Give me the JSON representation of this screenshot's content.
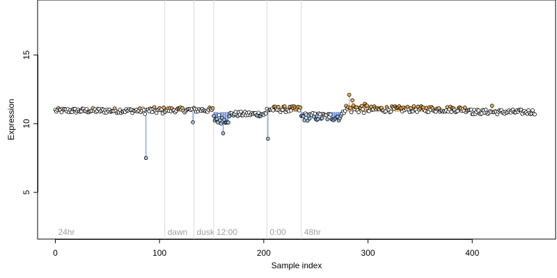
{
  "chart_data": {
    "type": "scatter",
    "title": "",
    "xlabel": "Sample index",
    "ylabel": "Expression",
    "xlim": [
      -17,
      480
    ],
    "ylim": [
      1.6,
      19.0
    ],
    "x_ticks": [
      0,
      100,
      200,
      300,
      400
    ],
    "y_ticks": [
      5,
      10,
      15
    ],
    "baseline": 10.85,
    "grid": false,
    "legend": "none",
    "colors": {
      "marker_default": "#000000",
      "marker_low": "#9ec3e6",
      "marker_high": "#f2b35a",
      "stem_low": "#5b7fd6",
      "stem_high": "#e8a040",
      "region_line": "#d9d9d9",
      "region_label": "#a0a0a0"
    },
    "regions": [
      {
        "label": "24hr",
        "x": 0
      },
      {
        "label": "dawn",
        "x": 105
      },
      {
        "label": "dusk",
        "x": 133
      },
      {
        "label": "12:00",
        "x": 152
      },
      {
        "label": "0:00",
        "x": 203
      },
      {
        "label": "48hr",
        "x": 236
      }
    ],
    "outliers": [
      {
        "x": 87,
        "y": 7.5
      },
      {
        "x": 132,
        "y": 10.1
      },
      {
        "x": 161,
        "y": 9.3
      },
      {
        "x": 204,
        "y": 8.9
      },
      {
        "x": 282,
        "y": 12.1
      },
      {
        "x": 285,
        "y": 11.7
      },
      {
        "x": 419,
        "y": 11.3
      }
    ],
    "series_profile": [
      {
        "x_start": 0,
        "x_end": 86,
        "mean": 10.95,
        "spread": 0.18
      },
      {
        "x_start": 86,
        "x_end": 105,
        "mean": 10.95,
        "spread": 0.25
      },
      {
        "x_start": 105,
        "x_end": 152,
        "mean": 11.0,
        "spread": 0.18
      },
      {
        "x_start": 152,
        "x_end": 168,
        "mean": 10.35,
        "spread": 0.35
      },
      {
        "x_start": 168,
        "x_end": 203,
        "mean": 10.7,
        "spread": 0.18
      },
      {
        "x_start": 203,
        "x_end": 236,
        "mean": 11.05,
        "spread": 0.22
      },
      {
        "x_start": 236,
        "x_end": 276,
        "mean": 10.5,
        "spread": 0.3
      },
      {
        "x_start": 276,
        "x_end": 300,
        "mean": 11.1,
        "spread": 0.35
      },
      {
        "x_start": 300,
        "x_end": 400,
        "mean": 11.05,
        "spread": 0.22
      },
      {
        "x_start": 400,
        "x_end": 461,
        "mean": 10.85,
        "spread": 0.18
      }
    ]
  }
}
